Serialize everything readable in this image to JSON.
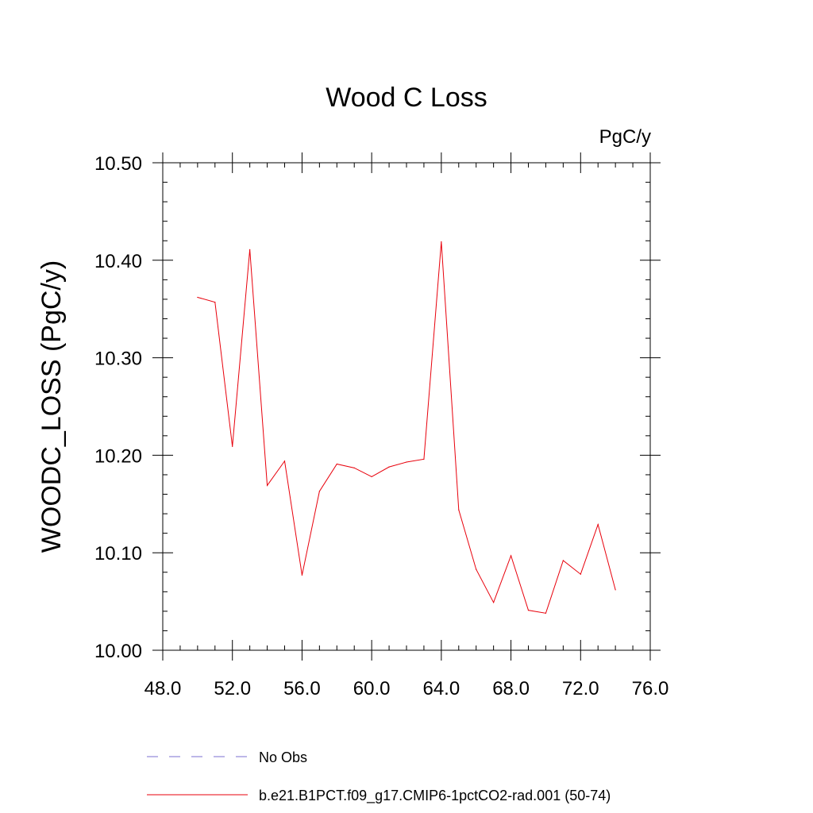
{
  "chart_data": {
    "type": "line",
    "title": "Wood C Loss",
    "units_label": "PgC/y",
    "ylabel": "WOODC_LOSS  (PgC/y)",
    "xlabel": "",
    "xlim": [
      48,
      76
    ],
    "ylim": [
      10.0,
      10.5
    ],
    "x_ticks": [
      "48.0",
      "52.0",
      "56.0",
      "60.0",
      "64.0",
      "68.0",
      "72.0",
      "76.0"
    ],
    "y_ticks": [
      "10.00",
      "10.10",
      "10.20",
      "10.30",
      "10.40",
      "10.50"
    ],
    "x_tick_values": [
      48,
      52,
      56,
      60,
      64,
      68,
      72,
      76
    ],
    "y_tick_values": [
      10.0,
      10.1,
      10.2,
      10.3,
      10.4,
      10.5
    ],
    "grid": false,
    "legend_placement": "bottom",
    "series": [
      {
        "name": "b.e21.B1PCT.f09_g17.CMIP6-1pctCO2-rad.001 (50-74)",
        "color": "#e8000b",
        "style": "solid",
        "x": [
          50,
          51,
          52,
          53,
          54,
          55,
          56,
          57,
          58,
          59,
          60,
          61,
          62,
          63,
          64,
          65,
          66,
          67,
          68,
          69,
          70,
          71,
          72,
          73,
          74
        ],
        "values": [
          10.362,
          10.357,
          10.209,
          10.411,
          10.169,
          10.194,
          10.077,
          10.163,
          10.191,
          10.187,
          10.178,
          10.188,
          10.193,
          10.196,
          10.419,
          10.144,
          10.083,
          10.049,
          10.097,
          10.041,
          10.038,
          10.092,
          10.078,
          10.129,
          10.062
        ]
      }
    ],
    "legend": [
      {
        "label": "No Obs",
        "color": "#7b6fd0",
        "style": "dashed"
      },
      {
        "label": "b.e21.B1PCT.f09_g17.CMIP6-1pctCO2-rad.001 (50-74)",
        "color": "#e8000b",
        "style": "solid"
      }
    ]
  }
}
